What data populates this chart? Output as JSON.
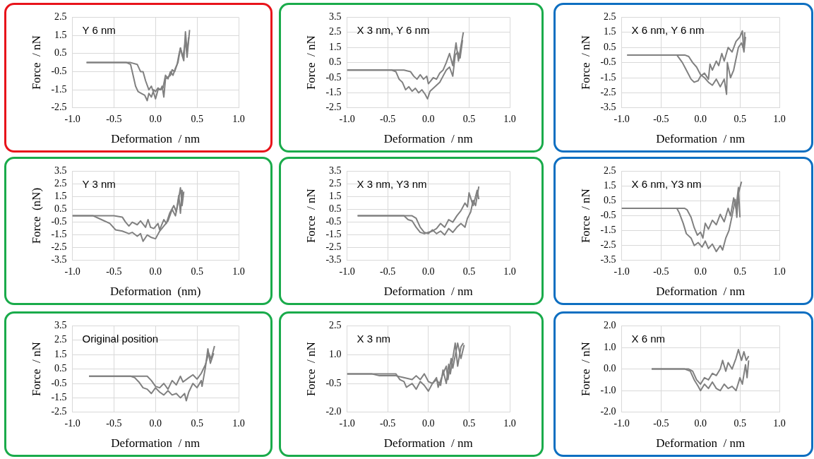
{
  "chart_data": [
    {
      "type": "line",
      "xlabel": "Deformation  / nm",
      "ylabel": "Force  / nN",
      "annotations": [
        "Y 6 nm"
      ],
      "grid": true,
      "xlim": [
        -1,
        1
      ],
      "xticks": [
        {
          "value": -1,
          "label": "-1.0"
        },
        {
          "value": -0.5,
          "label": "-0.5"
        },
        {
          "value": 0,
          "label": "0.0"
        },
        {
          "value": 0.5,
          "label": "0.5"
        },
        {
          "value": 1,
          "label": "1.0"
        }
      ],
      "ylim": [
        -2.5,
        2.5
      ],
      "yticks": [
        -2.5,
        -1.5,
        -0.5,
        0.5,
        1.5,
        2.5
      ],
      "series": [
        {
          "color": "#808080",
          "x": [
            -0.83,
            -0.5,
            -0.35,
            -0.3,
            -0.27,
            -0.24,
            -0.21,
            -0.17,
            -0.13,
            -0.1,
            -0.08,
            -0.05,
            -0.02,
            0.0,
            0.03,
            0.06,
            0.08,
            0.1,
            0.12,
            0.15,
            0.18,
            0.2,
            0.23,
            0.26,
            0.28,
            0.3,
            0.32,
            0.34,
            0.36,
            0.38,
            0.4
          ],
          "values": [
            0,
            0,
            0,
            -0.1,
            -0.7,
            -1.3,
            -1.6,
            -1.7,
            -1.8,
            -2.1,
            -1.7,
            -1.9,
            -1.5,
            -1.6,
            -1.4,
            -1.5,
            -1.3,
            -1.9,
            -0.9,
            -0.8,
            -0.7,
            -0.4,
            -0.5,
            -0.1,
            0.4,
            0.8,
            0.4,
            0.1,
            1.7,
            0.6,
            1.4
          ]
        },
        {
          "color": "#808080",
          "x": [
            -0.83,
            -0.4,
            -0.3,
            -0.22,
            -0.18,
            -0.15,
            -0.12,
            -0.08,
            -0.05,
            -0.02,
            0.0,
            0.03,
            0.06,
            0.09,
            0.12,
            0.15,
            0.18,
            0.21,
            0.24,
            0.27,
            0.3,
            0.33,
            0.36,
            0.38,
            0.41
          ],
          "values": [
            0,
            0,
            0,
            -0.1,
            -0.5,
            -0.5,
            -1.0,
            -1.5,
            -1.3,
            -1.7,
            -2.0,
            -1.5,
            -1.5,
            -1.4,
            -0.7,
            -0.9,
            -0.5,
            -0.7,
            -0.3,
            0.0,
            0.8,
            0.3,
            1.2,
            0.3,
            1.8
          ]
        }
      ]
    },
    {
      "type": "line",
      "xlabel": "Deformation  / nm",
      "ylabel": "Force  / nN",
      "annotations": [
        "X 3 nm, Y 6 nm"
      ],
      "grid": true,
      "xlim": [
        -1,
        1
      ],
      "xticks": [
        {
          "value": -1,
          "label": "-1.0"
        },
        {
          "value": -0.5,
          "label": "-0.5"
        },
        {
          "value": 0,
          "label": "0.0"
        },
        {
          "value": 0.5,
          "label": "0.5"
        },
        {
          "value": 1,
          "label": "1.0"
        }
      ],
      "ylim": [
        -2.5,
        3.5
      ],
      "yticks": [
        -2.5,
        -1.5,
        -0.5,
        0.5,
        1.5,
        2.5,
        3.5
      ],
      "series": [
        {
          "color": "#808080",
          "x": [
            -1.0,
            -0.5,
            -0.3,
            -0.22,
            -0.18,
            -0.14,
            -0.1,
            -0.06,
            -0.02,
            0.0,
            0.03,
            0.06,
            0.1,
            0.14,
            0.18,
            0.22,
            0.26,
            0.3,
            0.34,
            0.37,
            0.4,
            0.43
          ],
          "values": [
            0,
            0,
            0,
            -0.1,
            -0.4,
            -0.6,
            -0.3,
            -0.6,
            -0.4,
            -0.9,
            -0.7,
            -0.5,
            -0.6,
            -0.2,
            0.0,
            0.5,
            1.1,
            0.3,
            1.8,
            0.6,
            1.6,
            2.5
          ]
        },
        {
          "color": "#808080",
          "x": [
            -1.0,
            -0.45,
            -0.4,
            -0.36,
            -0.32,
            -0.28,
            -0.24,
            -0.2,
            -0.16,
            -0.12,
            -0.08,
            -0.04,
            -0.01,
            0.02,
            0.06,
            0.1,
            0.14,
            0.18,
            0.22,
            0.26,
            0.3,
            0.33,
            0.36,
            0.39,
            0.42
          ],
          "values": [
            0,
            0,
            -0.1,
            -0.6,
            -0.8,
            -1.3,
            -1.1,
            -1.4,
            -1.2,
            -1.5,
            -1.3,
            -1.6,
            -1.9,
            -1.4,
            -1.2,
            -1.0,
            -0.8,
            -0.4,
            0.0,
            0.2,
            -0.4,
            1.0,
            1.2,
            0.8,
            2.0
          ]
        }
      ]
    },
    {
      "type": "line",
      "xlabel": "Deformation  / nm",
      "ylabel": "Force  / nN",
      "annotations": [
        "X 6 nm, Y 6 nm"
      ],
      "grid": true,
      "xlim": [
        -1,
        1
      ],
      "xticks": [
        {
          "value": -1,
          "label": "-1.0"
        },
        {
          "value": -0.5,
          "label": "-0.5"
        },
        {
          "value": 0,
          "label": "0.0"
        },
        {
          "value": 0.5,
          "label": "0.5"
        },
        {
          "value": 1,
          "label": "1.0"
        }
      ],
      "ylim": [
        -3.5,
        2.5
      ],
      "yticks": [
        -3.5,
        -2.5,
        -1.5,
        -0.5,
        0.5,
        1.5,
        2.5
      ],
      "series": [
        {
          "color": "#808080",
          "x": [
            -0.93,
            -0.5,
            -0.3,
            -0.23,
            -0.18,
            -0.12,
            -0.08,
            -0.03,
            0.0,
            0.05,
            0.1,
            0.12,
            0.15,
            0.2,
            0.23,
            0.27,
            0.3,
            0.35,
            0.4,
            0.45,
            0.5,
            0.53,
            0.55,
            0.57
          ],
          "values": [
            0,
            0,
            0,
            -0.5,
            -1.0,
            -1.6,
            -1.8,
            -1.7,
            -1.4,
            -1.2,
            -1.6,
            -0.6,
            -1.0,
            -0.4,
            -0.7,
            0.1,
            -0.4,
            0.5,
            0.2,
            0.9,
            1.2,
            1.6,
            0.2,
            1.2
          ]
        },
        {
          "color": "#808080",
          "x": [
            -0.93,
            -0.4,
            -0.2,
            -0.15,
            -0.1,
            -0.05,
            0.0,
            0.05,
            0.1,
            0.15,
            0.2,
            0.25,
            0.3,
            0.33,
            0.34,
            0.38,
            0.42,
            0.48,
            0.52,
            0.55,
            0.56
          ],
          "values": [
            0,
            0,
            0,
            -0.1,
            -0.5,
            -0.8,
            -1.3,
            -1.5,
            -1.8,
            -2.0,
            -1.6,
            -2.1,
            -1.6,
            -2.6,
            -0.5,
            -1.5,
            -1.0,
            0.5,
            0.8,
            0.3,
            1.5
          ]
        }
      ]
    },
    {
      "type": "line",
      "xlabel": "Deformation  (nm)",
      "ylabel": "Force  (nN)",
      "annotations": [
        "Y 3 nm"
      ],
      "grid": true,
      "xlim": [
        -1,
        1
      ],
      "xticks": [
        {
          "value": -1,
          "label": "-1.0"
        },
        {
          "value": -0.5,
          "label": "-0.5"
        },
        {
          "value": 0,
          "label": "0.0"
        },
        {
          "value": 0.5,
          "label": "0.5"
        },
        {
          "value": 1,
          "label": "1.0"
        }
      ],
      "ylim": [
        -3.5,
        3.5
      ],
      "yticks": [
        -3.5,
        -2.5,
        -1.5,
        -0.5,
        0.5,
        1.5,
        2.5,
        3.5
      ],
      "series": [
        {
          "color": "#808080",
          "x": [
            -1.0,
            -0.75,
            -0.65,
            -0.55,
            -0.48,
            -0.4,
            -0.32,
            -0.28,
            -0.22,
            -0.18,
            -0.15,
            -0.1,
            -0.05,
            0.0,
            0.05,
            0.1,
            0.15,
            0.2,
            0.24,
            0.27,
            0.3,
            0.32,
            0.34
          ],
          "values": [
            0,
            0,
            -0.3,
            -0.6,
            -1.1,
            -1.2,
            -1.4,
            -1.3,
            -1.6,
            -1.4,
            -2.0,
            -1.5,
            -1.7,
            -1.8,
            -1.2,
            -0.8,
            -0.4,
            0.5,
            0.0,
            1.0,
            2.2,
            0.8,
            1.9
          ]
        },
        {
          "color": "#808080",
          "x": [
            -1.0,
            -0.5,
            -0.4,
            -0.36,
            -0.32,
            -0.28,
            -0.22,
            -0.18,
            -0.12,
            -0.09,
            -0.06,
            -0.02,
            0.03,
            0.05,
            0.1,
            0.13,
            0.17,
            0.22,
            0.25,
            0.28,
            0.3,
            0.32,
            0.33
          ],
          "values": [
            0,
            0,
            -0.1,
            -0.5,
            -0.8,
            -0.5,
            -0.7,
            -0.4,
            -0.9,
            -0.3,
            -0.9,
            -1.0,
            -0.6,
            -1.1,
            -0.3,
            -0.6,
            0.2,
            0.8,
            0.3,
            1.6,
            0.2,
            2.0,
            1.4
          ]
        }
      ]
    },
    {
      "type": "line",
      "xlabel": "Deformation  / nm",
      "ylabel": "Force  / nN",
      "annotations": [
        "X 3 nm, Y3 nm"
      ],
      "grid": true,
      "xlim": [
        -1,
        1
      ],
      "xticks": [
        {
          "value": -1,
          "label": "-1.0"
        },
        {
          "value": -0.5,
          "label": "-0.5"
        },
        {
          "value": 0,
          "label": "0.0"
        },
        {
          "value": 0.5,
          "label": "0.5"
        },
        {
          "value": 1,
          "label": "1.0"
        }
      ],
      "ylim": [
        -3.5,
        3.5
      ],
      "yticks": [
        -3.5,
        -2.5,
        -1.5,
        -0.5,
        0.5,
        1.5,
        2.5,
        3.5
      ],
      "series": [
        {
          "color": "#808080",
          "x": [
            -0.87,
            -0.5,
            -0.3,
            -0.25,
            -0.2,
            -0.15,
            -0.1,
            -0.05,
            0.0,
            0.05,
            0.1,
            0.15,
            0.2,
            0.25,
            0.3,
            0.35,
            0.4,
            0.45,
            0.48,
            0.5,
            0.55,
            0.58,
            0.6,
            0.62
          ],
          "values": [
            0,
            0,
            0,
            -0.3,
            -0.4,
            -0.9,
            -1.3,
            -1.4,
            -1.3,
            -1.2,
            -1.0,
            -0.6,
            -0.9,
            -0.3,
            -0.5,
            0.0,
            0.4,
            1.0,
            0.7,
            1.8,
            0.8,
            1.5,
            2.0,
            1.3
          ]
        },
        {
          "color": "#808080",
          "x": [
            -0.87,
            -0.4,
            -0.2,
            -0.15,
            -0.1,
            -0.05,
            0.0,
            0.05,
            0.1,
            0.15,
            0.2,
            0.25,
            0.3,
            0.35,
            0.4,
            0.45,
            0.48,
            0.52,
            0.55,
            0.58,
            0.62
          ],
          "values": [
            0,
            0,
            0,
            -0.2,
            -0.9,
            -1.3,
            -1.4,
            -1.1,
            -1.4,
            -1.2,
            -1.5,
            -1.0,
            -1.3,
            -0.9,
            -0.6,
            -0.9,
            -0.2,
            0.3,
            1.2,
            0.8,
            2.3
          ]
        }
      ]
    },
    {
      "type": "line",
      "xlabel": "Deformation  / nm",
      "ylabel": "Force  / nN",
      "annotations": [
        "X 6 nm, Y3 nm"
      ],
      "grid": true,
      "xlim": [
        -1,
        1
      ],
      "xticks": [
        {
          "value": -1,
          "label": "-1.0"
        },
        {
          "value": -0.5,
          "label": "-0.5"
        },
        {
          "value": 0,
          "label": "0.0"
        },
        {
          "value": 0.5,
          "label": "0.5"
        },
        {
          "value": 1,
          "label": "1.0"
        }
      ],
      "ylim": [
        -3.5,
        2.5
      ],
      "yticks": [
        -3.5,
        -2.5,
        -1.5,
        -0.5,
        0.5,
        1.5,
        2.5
      ],
      "series": [
        {
          "color": "#808080",
          "x": [
            -1.0,
            -0.5,
            -0.3,
            -0.27,
            -0.22,
            -0.18,
            -0.12,
            -0.08,
            -0.03,
            0.02,
            0.06,
            0.1,
            0.15,
            0.2,
            0.25,
            0.28,
            0.32,
            0.36,
            0.4,
            0.44,
            0.46,
            0.48,
            0.52
          ],
          "values": [
            0,
            0,
            0,
            -0.3,
            -1.0,
            -1.7,
            -2.0,
            -2.5,
            -2.3,
            -2.6,
            -2.2,
            -2.7,
            -2.4,
            -2.9,
            -2.5,
            -2.8,
            -2.0,
            -1.5,
            -0.5,
            0.6,
            -0.6,
            1.0,
            1.8
          ]
        },
        {
          "color": "#808080",
          "x": [
            -1.0,
            -0.4,
            -0.2,
            -0.17,
            -0.12,
            -0.08,
            -0.04,
            0.0,
            0.03,
            0.06,
            0.1,
            0.15,
            0.2,
            0.25,
            0.3,
            0.35,
            0.38,
            0.42,
            0.45,
            0.48,
            0.5
          ],
          "values": [
            0,
            0,
            0,
            -0.1,
            -0.6,
            -1.3,
            -1.8,
            -1.6,
            -2.0,
            -1.0,
            -1.4,
            -0.8,
            -1.1,
            -0.4,
            -0.9,
            0.0,
            -0.5,
            0.7,
            0.0,
            1.4,
            -0.6
          ]
        }
      ]
    },
    {
      "type": "line",
      "xlabel": "Deformation  / nm",
      "ylabel": "Force  / nN",
      "annotations": [
        "Original position"
      ],
      "grid": true,
      "xlim": [
        -1,
        1
      ],
      "xticks": [
        {
          "value": -1,
          "label": "-1.0"
        },
        {
          "value": -0.5,
          "label": "-0.5"
        },
        {
          "value": 0,
          "label": "0.0"
        },
        {
          "value": 0.5,
          "label": "0.5"
        },
        {
          "value": 1,
          "label": "1.0"
        }
      ],
      "ylim": [
        -2.5,
        3.5
      ],
      "yticks": [
        -2.5,
        -1.5,
        -0.5,
        0.5,
        1.5,
        2.5,
        3.5
      ],
      "series": [
        {
          "color": "#808080",
          "x": [
            -0.8,
            -0.3,
            -0.1,
            -0.05,
            0.0,
            0.05,
            0.1,
            0.15,
            0.2,
            0.25,
            0.3,
            0.33,
            0.4,
            0.45,
            0.5,
            0.55,
            0.6,
            0.64,
            0.67,
            0.71
          ],
          "values": [
            0,
            0,
            0,
            -0.3,
            -0.7,
            -0.8,
            -0.5,
            -0.9,
            -0.3,
            -0.6,
            0.0,
            -0.4,
            -0.1,
            0.1,
            -0.2,
            0.2,
            0.8,
            1.6,
            1.2,
            2.1
          ]
        },
        {
          "color": "#808080",
          "x": [
            -0.8,
            -0.4,
            -0.3,
            -0.25,
            -0.2,
            -0.15,
            -0.1,
            -0.05,
            0.0,
            0.05,
            0.1,
            0.15,
            0.2,
            0.25,
            0.3,
            0.35,
            0.37,
            0.4,
            0.45,
            0.5,
            0.55,
            0.56,
            0.6,
            0.63,
            0.66,
            0.7
          ],
          "values": [
            0,
            0,
            0,
            -0.1,
            -0.4,
            -0.8,
            -0.9,
            -1.2,
            -0.8,
            -1.1,
            -1.3,
            -1.0,
            -1.3,
            -1.2,
            -1.5,
            -1.2,
            -1.7,
            -1.1,
            -0.5,
            -0.8,
            -0.3,
            -0.7,
            0.6,
            1.9,
            0.9,
            1.6
          ]
        }
      ]
    },
    {
      "type": "line",
      "xlabel": "Deformation  / nm",
      "ylabel": "Force  / nN",
      "annotations": [
        "X 3 nm"
      ],
      "grid": true,
      "xlim": [
        -1,
        1
      ],
      "xticks": [
        {
          "value": -1,
          "label": "-1.0"
        },
        {
          "value": -0.5,
          "label": "-0.5"
        },
        {
          "value": 0,
          "label": "0.0"
        },
        {
          "value": 0.5,
          "label": "0.5"
        },
        {
          "value": 1,
          "label": "1.0"
        }
      ],
      "ylim": [
        -2,
        2.5
      ],
      "yticks": [
        {
          "value": -2,
          "label": "-2.0"
        },
        -0.5,
        {
          "value": 1,
          "label": "1.0"
        },
        2.5
      ],
      "series": [
        {
          "color": "#808080",
          "x": [
            -1.0,
            -0.7,
            -0.6,
            -0.4,
            -0.3,
            -0.2,
            -0.15,
            -0.1,
            -0.05,
            0.0,
            0.05,
            0.1,
            0.12,
            0.18,
            0.22,
            0.24,
            0.28,
            0.3,
            0.36,
            0.4,
            0.44
          ],
          "values": [
            0,
            0,
            -0.1,
            -0.1,
            -0.2,
            -0.3,
            -0.1,
            -0.3,
            0.0,
            -0.4,
            -0.5,
            -0.2,
            -0.7,
            0.0,
            0.4,
            -0.3,
            0.8,
            0.3,
            1.6,
            0.8,
            1.5
          ]
        },
        {
          "color": "#808080",
          "x": [
            -1.0,
            -0.4,
            -0.35,
            -0.3,
            -0.27,
            -0.2,
            -0.15,
            -0.1,
            -0.05,
            0.0,
            0.05,
            0.1,
            0.15,
            0.18,
            0.22,
            0.25,
            0.27,
            0.33,
            0.36,
            0.4,
            0.43
          ],
          "values": [
            0,
            0,
            -0.3,
            -0.4,
            -0.7,
            -0.5,
            -0.8,
            -0.4,
            -0.6,
            -0.9,
            -0.5,
            -0.3,
            -0.6,
            0.2,
            -0.5,
            0.5,
            0.0,
            1.6,
            0.4,
            1.4,
            1.6
          ]
        }
      ]
    },
    {
      "type": "line",
      "xlabel": "Deformation  / nm",
      "ylabel": "Force  / nN",
      "annotations": [
        "X 6 nm"
      ],
      "grid": true,
      "xlim": [
        -1,
        1
      ],
      "xticks": [
        {
          "value": -1,
          "label": "-1.0"
        },
        {
          "value": -0.5,
          "label": "-0.5"
        },
        {
          "value": 0,
          "label": "0.0"
        },
        {
          "value": 0.5,
          "label": "0.5"
        },
        {
          "value": 1,
          "label": "1.0"
        }
      ],
      "ylim": [
        -2,
        2
      ],
      "yticks": [
        {
          "value": -2,
          "label": "-2.0"
        },
        {
          "value": -1,
          "label": "-1.0"
        },
        {
          "value": 0,
          "label": "0.0"
        },
        {
          "value": 1,
          "label": "1.0"
        },
        {
          "value": 2,
          "label": "2.0"
        }
      ],
      "series": [
        {
          "color": "#808080",
          "x": [
            -0.62,
            -0.3,
            -0.15,
            -0.1,
            -0.05,
            0.0,
            0.05,
            0.1,
            0.15,
            0.2,
            0.25,
            0.28,
            0.32,
            0.35,
            0.4,
            0.45,
            0.48,
            0.52,
            0.55,
            0.58,
            0.61
          ],
          "values": [
            0,
            0,
            0,
            -0.1,
            -0.5,
            -0.7,
            -0.4,
            -0.5,
            -0.2,
            -0.3,
            0.0,
            0.4,
            -0.1,
            0.3,
            0.0,
            0.5,
            0.9,
            0.4,
            0.8,
            0.4,
            0.6
          ]
        },
        {
          "color": "#808080",
          "x": [
            -0.62,
            -0.3,
            -0.2,
            -0.13,
            -0.08,
            -0.03,
            0.0,
            0.05,
            0.1,
            0.15,
            0.2,
            0.25,
            0.3,
            0.35,
            0.4,
            0.45,
            0.5,
            0.53,
            0.57,
            0.59,
            0.61
          ],
          "values": [
            0,
            0,
            0,
            -0.1,
            -0.5,
            -0.8,
            -1.0,
            -0.7,
            -0.9,
            -0.6,
            -0.9,
            -1.0,
            -0.7,
            -0.9,
            -0.8,
            -1.0,
            -0.4,
            -0.7,
            0.2,
            -0.4,
            0.4
          ]
        }
      ]
    }
  ]
}
